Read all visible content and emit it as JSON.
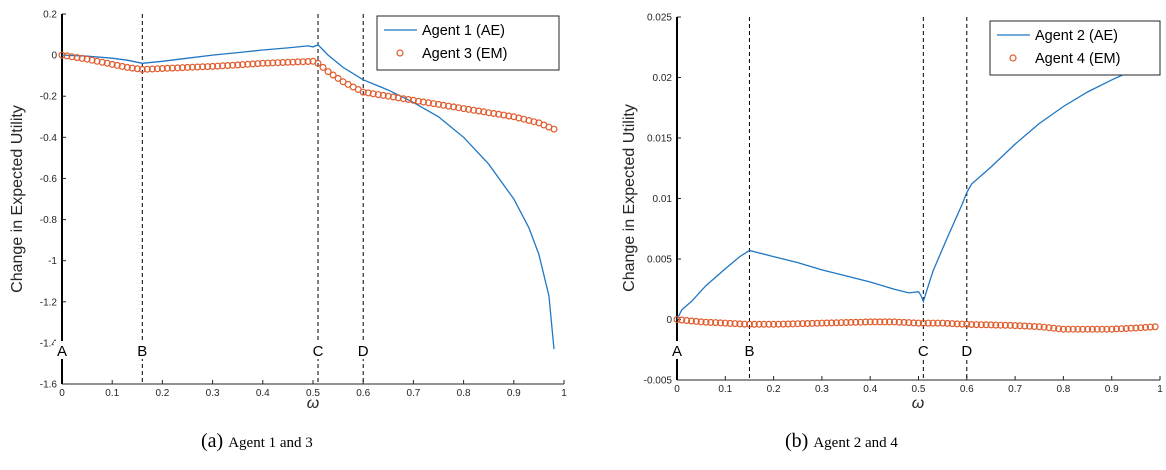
{
  "colors": {
    "agent_ae": "#1f77c4",
    "agent_em": "#e15a2a",
    "axis": "#262626"
  },
  "captions": [
    {
      "tag": "(a)",
      "text": "Agent 1 and 3"
    },
    {
      "tag": "(b)",
      "text": "Agent 2 and 4"
    }
  ],
  "chart_data": [
    {
      "type": "line",
      "title": "",
      "xlabel": "ω",
      "ylabel": "Change in Expected Utility",
      "xlim": [
        0,
        1
      ],
      "ylim": [
        -1.6,
        0.2
      ],
      "xticks": [
        "0",
        "0.1",
        "0.2",
        "0.3",
        "0.4",
        "0.5",
        "0.6",
        "0.7",
        "0.8",
        "0.9",
        "1"
      ],
      "yticks": [
        "0.2",
        "0",
        "-0.2",
        "-0.4",
        "-0.6",
        "-0.8",
        "-1",
        "-1.2",
        "-1.4",
        "-1.6"
      ],
      "grid": false,
      "legend_position": "top-right",
      "markers": [
        {
          "label": "A",
          "x": 0
        },
        {
          "label": "B",
          "x": 0.16
        },
        {
          "label": "C",
          "x": 0.51
        },
        {
          "label": "D",
          "x": 0.6
        }
      ],
      "series": [
        {
          "name": "Agent 1 (AE)",
          "style": "line",
          "x": [
            0,
            0.05,
            0.1,
            0.13,
            0.16,
            0.2,
            0.25,
            0.3,
            0.35,
            0.4,
            0.45,
            0.49,
            0.5,
            0.51,
            0.53,
            0.56,
            0.6,
            0.65,
            0.7,
            0.75,
            0.8,
            0.85,
            0.9,
            0.93,
            0.95,
            0.97,
            0.98
          ],
          "y": [
            0,
            -0.005,
            -0.015,
            -0.025,
            -0.04,
            -0.03,
            -0.015,
            0,
            0.012,
            0.025,
            0.035,
            0.045,
            0.04,
            0.05,
            0.0,
            -0.06,
            -0.12,
            -0.17,
            -0.23,
            -0.3,
            -0.4,
            -0.53,
            -0.7,
            -0.84,
            -0.97,
            -1.17,
            -1.43
          ]
        },
        {
          "name": "Agent 3 (EM)",
          "style": "markers",
          "x": [
            0,
            0.05,
            0.1,
            0.13,
            0.16,
            0.2,
            0.3,
            0.4,
            0.45,
            0.5,
            0.51,
            0.53,
            0.56,
            0.6,
            0.65,
            0.7,
            0.75,
            0.8,
            0.85,
            0.9,
            0.95,
            0.98
          ],
          "y": [
            0,
            -0.02,
            -0.045,
            -0.06,
            -0.07,
            -0.065,
            -0.055,
            -0.04,
            -0.035,
            -0.03,
            -0.04,
            -0.08,
            -0.13,
            -0.18,
            -0.2,
            -0.22,
            -0.24,
            -0.26,
            -0.28,
            -0.3,
            -0.33,
            -0.36
          ]
        }
      ]
    },
    {
      "type": "line",
      "title": "",
      "xlabel": "ω",
      "ylabel": "Change in Expected Utility",
      "xlim": [
        0,
        1
      ],
      "ylim": [
        -0.005,
        0.025
      ],
      "xticks": [
        "0",
        "0.1",
        "0.2",
        "0.3",
        "0.4",
        "0.5",
        "0.6",
        "0.7",
        "0.8",
        "0.9",
        "1"
      ],
      "yticks": [
        "0.025",
        "0.02",
        "0.015",
        "0.01",
        "0.005",
        "0",
        "-0.005"
      ],
      "grid": false,
      "legend_position": "top-right",
      "markers": [
        {
          "label": "A",
          "x": 0
        },
        {
          "label": "B",
          "x": 0.15
        },
        {
          "label": "C",
          "x": 0.51
        },
        {
          "label": "D",
          "x": 0.6
        }
      ],
      "series": [
        {
          "name": "Agent 2 (AE)",
          "style": "line",
          "x": [
            0,
            0.01,
            0.03,
            0.06,
            0.1,
            0.13,
            0.15,
            0.2,
            0.25,
            0.3,
            0.35,
            0.4,
            0.45,
            0.48,
            0.5,
            0.505,
            0.51,
            0.53,
            0.56,
            0.59,
            0.6,
            0.61,
            0.65,
            0.7,
            0.75,
            0.8,
            0.85,
            0.9,
            0.95,
            0.98
          ],
          "y": [
            0,
            0.0008,
            0.0015,
            0.0028,
            0.0042,
            0.0052,
            0.0057,
            0.0052,
            0.0047,
            0.0041,
            0.0036,
            0.0031,
            0.0025,
            0.0022,
            0.0023,
            0.002,
            0.0015,
            0.004,
            0.0068,
            0.0095,
            0.0105,
            0.0112,
            0.0126,
            0.0145,
            0.0162,
            0.0176,
            0.0188,
            0.0198,
            0.0207,
            0.0215
          ]
        },
        {
          "name": "Agent 4 (EM)",
          "style": "markers",
          "x": [
            0,
            0.05,
            0.1,
            0.15,
            0.2,
            0.3,
            0.4,
            0.45,
            0.5,
            0.55,
            0.6,
            0.7,
            0.75,
            0.8,
            0.85,
            0.9,
            0.95,
            0.99
          ],
          "y": [
            0,
            -0.0002,
            -0.0003,
            -0.0004,
            -0.0004,
            -0.0003,
            -0.0002,
            -0.0002,
            -0.0003,
            -0.0003,
            -0.0004,
            -0.0005,
            -0.0006,
            -0.0008,
            -0.0008,
            -0.0008,
            -0.0007,
            -0.0006
          ]
        }
      ]
    }
  ]
}
